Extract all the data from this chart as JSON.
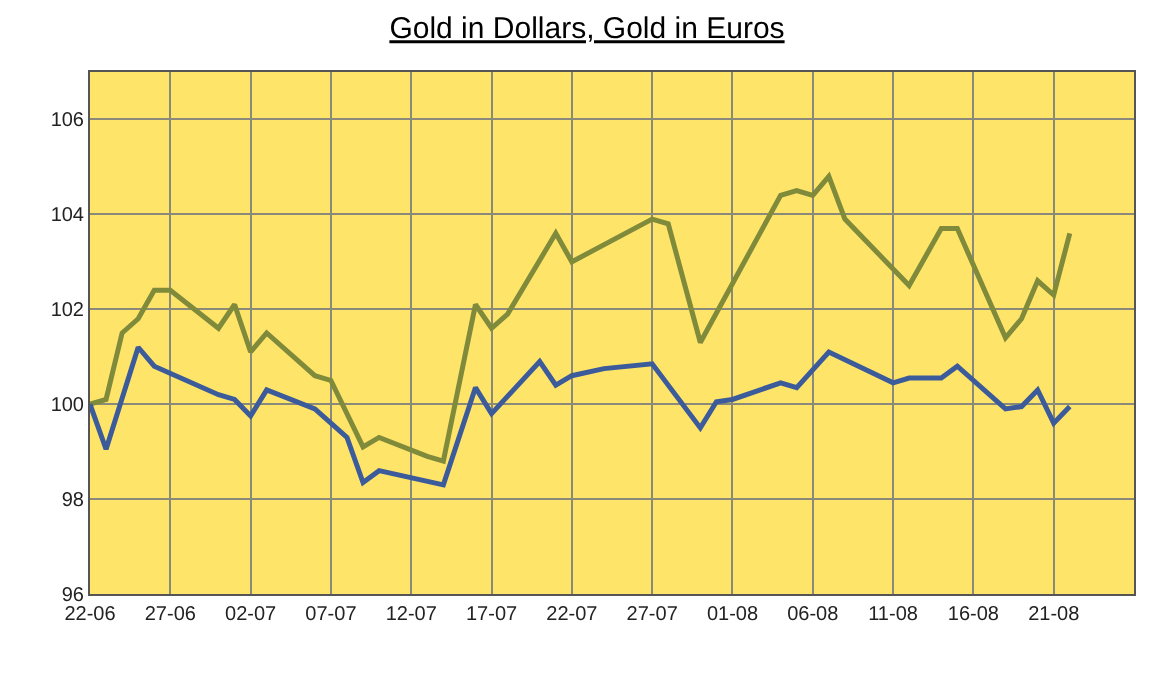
{
  "chart_data": {
    "type": "line",
    "title": "Gold in Dollars, Gold in Euros",
    "xlim": [
      "--06-22",
      "--08-26"
    ],
    "xticks": [
      {
        "value": "--06-22",
        "label": "22-06"
      },
      {
        "value": "--06-27",
        "label": "27-06"
      },
      {
        "value": "--07-02",
        "label": "02-07"
      },
      {
        "value": "--07-07",
        "label": "07-07"
      },
      {
        "value": "--07-12",
        "label": "12-07"
      },
      {
        "value": "--07-17",
        "label": "17-07"
      },
      {
        "value": "--07-22",
        "label": "22-07"
      },
      {
        "value": "--07-27",
        "label": "27-07"
      },
      {
        "value": "--08-01",
        "label": "01-08"
      },
      {
        "value": "--08-06",
        "label": "06-08"
      },
      {
        "value": "--08-11",
        "label": "11-08"
      },
      {
        "value": "--08-16",
        "label": "16-08"
      },
      {
        "value": "--08-21",
        "label": "21-08"
      }
    ],
    "ylim": [
      96,
      107
    ],
    "yticks": [
      96,
      98,
      100,
      102,
      104,
      106
    ],
    "grid": true,
    "line_style": "solid",
    "marker": "none",
    "series": [
      {
        "color": "#7f8a3a",
        "x": [
          "--06-22",
          "--06-23",
          "--06-24",
          "--06-25",
          "--06-26",
          "--06-27",
          "--06-30",
          "--07-01",
          "--07-02",
          "--07-03",
          "--07-06",
          "--07-07",
          "--07-09",
          "--07-10",
          "--07-13",
          "--07-14",
          "--07-16",
          "--07-17",
          "--07-18",
          "--07-21",
          "--07-22",
          "--07-27",
          "--07-28",
          "--07-30",
          "--08-04",
          "--08-05",
          "--08-06",
          "--08-07",
          "--08-08",
          "--08-12",
          "--08-14",
          "--08-15",
          "--08-18",
          "--08-19",
          "--08-20",
          "--08-21",
          "--08-22"
        ],
        "values": [
          100.0,
          100.1,
          101.5,
          101.8,
          102.4,
          102.4,
          101.6,
          102.1,
          101.1,
          101.5,
          100.6,
          100.5,
          99.1,
          99.3,
          98.9,
          98.8,
          102.1,
          101.6,
          101.9,
          103.6,
          103.0,
          103.9,
          103.8,
          101.3,
          104.4,
          104.5,
          104.4,
          104.8,
          103.9,
          102.5,
          103.7,
          103.7,
          101.4,
          101.8,
          102.6,
          102.3,
          103.6
        ]
      },
      {
        "color": "#3b5b9a",
        "x": [
          "--06-22",
          "--06-23",
          "--06-25",
          "--06-26",
          "--06-30",
          "--07-01",
          "--07-02",
          "--07-03",
          "--07-06",
          "--07-07",
          "--07-08",
          "--07-09",
          "--07-10",
          "--07-14",
          "--07-16",
          "--07-17",
          "--07-20",
          "--07-21",
          "--07-22",
          "--07-24",
          "--07-27",
          "--07-30",
          "--07-31",
          "--08-01",
          "--08-04",
          "--08-05",
          "--08-07",
          "--08-11",
          "--08-12",
          "--08-14",
          "--08-15",
          "--08-18",
          "--08-19",
          "--08-20",
          "--08-21",
          "--08-22"
        ],
        "values": [
          100.0,
          99.05,
          101.2,
          100.8,
          100.2,
          100.1,
          99.75,
          100.3,
          99.9,
          99.6,
          99.3,
          98.35,
          98.6,
          98.3,
          100.35,
          99.8,
          100.9,
          100.4,
          100.6,
          100.75,
          100.85,
          99.5,
          100.05,
          100.1,
          100.45,
          100.35,
          101.1,
          100.45,
          100.55,
          100.55,
          100.8,
          99.9,
          99.95,
          100.3,
          99.6,
          99.95
        ]
      }
    ]
  }
}
